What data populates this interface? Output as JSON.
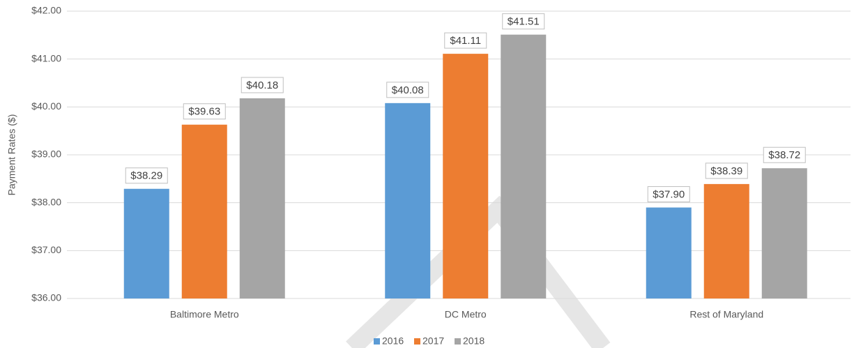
{
  "chart_data": {
    "type": "bar",
    "y_label": "Payment Rates ($)",
    "categories": [
      "Baltimore Metro",
      "DC Metro",
      "Rest of Maryland"
    ],
    "series": [
      {
        "name": "2016",
        "color": "#5b9bd5",
        "values": [
          38.29,
          40.08,
          37.9
        ],
        "value_labels": [
          "$38.29",
          "$40.08",
          "$37.90"
        ]
      },
      {
        "name": "2017",
        "color": "#ed7d31",
        "values": [
          39.63,
          41.11,
          38.39
        ],
        "value_labels": [
          "$39.63",
          "$41.11",
          "$38.39"
        ]
      },
      {
        "name": "2018",
        "color": "#a5a5a5",
        "values": [
          40.18,
          41.51,
          38.72
        ],
        "value_labels": [
          "$40.18",
          "$41.51",
          "$38.72"
        ]
      }
    ],
    "ylim": [
      36,
      42
    ],
    "yticks": [
      {
        "value": 36,
        "label": "$36.00"
      },
      {
        "value": 37,
        "label": "$37.00"
      },
      {
        "value": 38,
        "label": "$38.00"
      },
      {
        "value": 39,
        "label": "$39.00"
      },
      {
        "value": 40,
        "label": "$40.00"
      },
      {
        "value": 41,
        "label": "$41.00"
      },
      {
        "value": 42,
        "label": "$42.00"
      }
    ],
    "grid": true,
    "legend": "bottom"
  }
}
